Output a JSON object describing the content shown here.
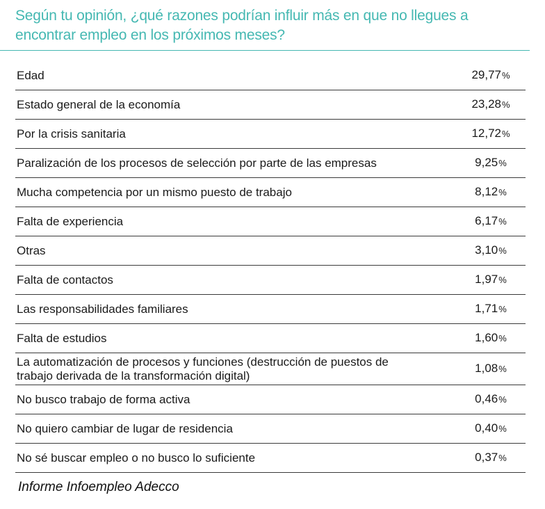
{
  "chart_data": {
    "type": "table",
    "title": "Según tu opinión, ¿qué razones podrían influir más en que no llegues a encontrar empleo en los próximos meses?",
    "unit": "%",
    "rows": [
      {
        "label": "Edad",
        "value": "29,77"
      },
      {
        "label": "Estado general de la economía",
        "value": "23,28"
      },
      {
        "label": "Por la crisis sanitaria",
        "value": "12,72"
      },
      {
        "label": "Paralización de los procesos de selección por parte de las empresas",
        "value": "9,25"
      },
      {
        "label": "Mucha competencia por un mismo puesto de trabajo",
        "value": "8,12"
      },
      {
        "label": "Falta de experiencia",
        "value": "6,17"
      },
      {
        "label": "Otras",
        "value": "3,10"
      },
      {
        "label": "Falta de contactos",
        "value": "1,97"
      },
      {
        "label": "Las responsabilidades familiares",
        "value": "1,71"
      },
      {
        "label": "Falta de estudios",
        "value": "1,60"
      },
      {
        "label": "La automatización de procesos y funciones (destrucción de puestos de trabajo derivada de la transformación digital)",
        "value": "1,08"
      },
      {
        "label": "No busco trabajo de forma activa",
        "value": "0,46"
      },
      {
        "label": "No quiero cambiar de lugar de residencia",
        "value": "0,40"
      },
      {
        "label": "No sé buscar empleo o no busco lo suficiente",
        "value": "0,37"
      }
    ],
    "source": "Informe Infoempleo Adecco"
  },
  "colors": {
    "title": "#45b8b2",
    "rule": "#45b8b2",
    "row_border": "#3a3a3a"
  }
}
